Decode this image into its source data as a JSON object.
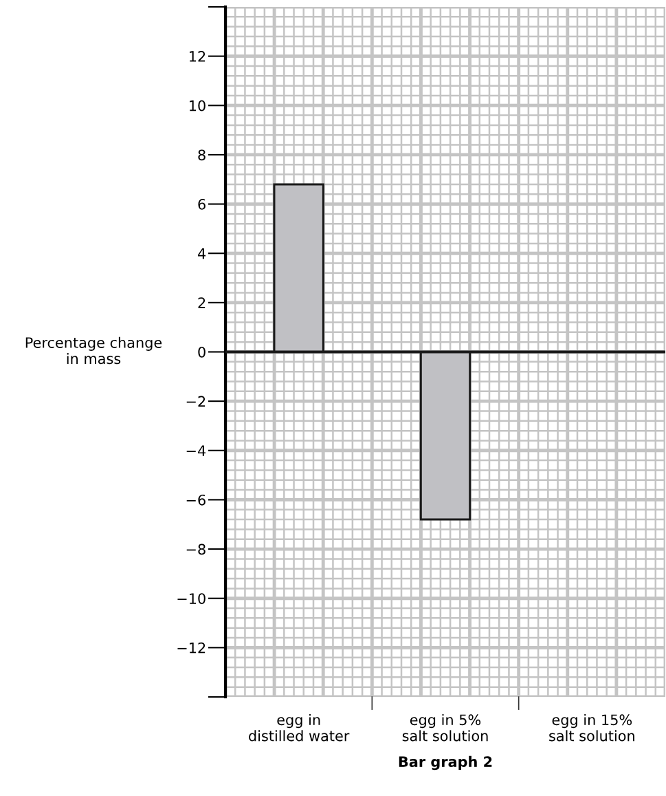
{
  "chart_data": {
    "type": "bar",
    "title": "Bar graph 2",
    "ylabel": "Percentage change\nin mass",
    "categories": [
      "egg in\ndistilled water",
      "egg in 5%\nsalt solution",
      "egg in 15%\nsalt solution"
    ],
    "values": [
      6.8,
      -6.8,
      null
    ],
    "color": "#c0c0c4",
    "ylim": [
      -14,
      14
    ],
    "yticks": [
      {
        "value": -14,
        "label": null
      },
      {
        "value": -12,
        "label": "−12"
      },
      {
        "value": -10,
        "label": "−10"
      },
      {
        "value": -8,
        "label": "−8"
      },
      {
        "value": -6,
        "label": "−6"
      },
      {
        "value": -4,
        "label": "−4"
      },
      {
        "value": -2,
        "label": "−2"
      },
      0,
      2,
      4,
      6,
      8,
      10,
      12,
      {
        "value": 14,
        "label": null
      }
    ],
    "grid": true
  }
}
